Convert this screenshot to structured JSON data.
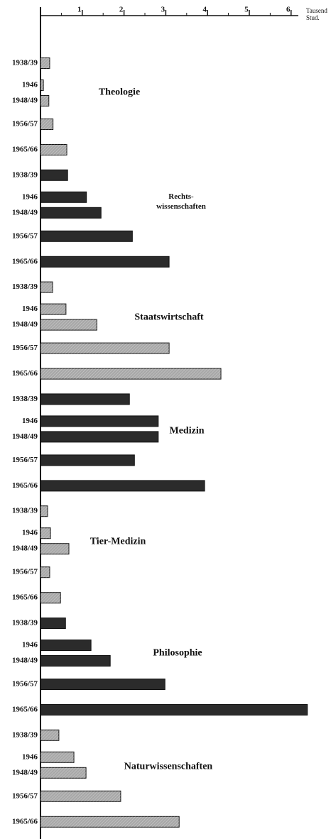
{
  "chart_data": {
    "type": "bar",
    "orientation": "horizontal",
    "x_axis_label": "Tausend\nStud.",
    "categories": [
      "1938/39",
      "1946",
      "1948/49",
      "1956/57",
      "1965/66"
    ],
    "xlim": [
      0,
      6.5
    ],
    "xticks": [
      1,
      2,
      3,
      4,
      5,
      6
    ],
    "xminor_ticks": [
      0.5,
      1.5,
      2.5,
      3.5,
      4.5,
      5.5
    ],
    "series": [
      {
        "name": "Theologie",
        "color": "#a8a8a8",
        "values": [
          0.22,
          0.07,
          0.2,
          0.3,
          0.63
        ]
      },
      {
        "name": "Rechts-\nwissenschaften",
        "color": "#2b2b2b",
        "values": [
          0.65,
          1.1,
          1.45,
          2.2,
          3.08
        ]
      },
      {
        "name": "Staatswirtschaft",
        "color": "#a8a8a8",
        "values": [
          0.29,
          0.61,
          1.35,
          3.08,
          4.32
        ]
      },
      {
        "name": "Medizin",
        "color": "#2b2b2b",
        "values": [
          2.13,
          2.82,
          2.82,
          2.25,
          3.93
        ]
      },
      {
        "name": "Tier-Medizin",
        "color": "#a8a8a8",
        "values": [
          0.17,
          0.24,
          0.68,
          0.22,
          0.48
        ]
      },
      {
        "name": "Philosophie",
        "color": "#2b2b2b",
        "values": [
          0.6,
          1.21,
          1.67,
          2.98,
          6.39
        ]
      },
      {
        "name": "Naturwissenschaften",
        "color": "#a8a8a8",
        "values": [
          0.44,
          0.8,
          1.09,
          1.92,
          3.32
        ]
      }
    ]
  }
}
